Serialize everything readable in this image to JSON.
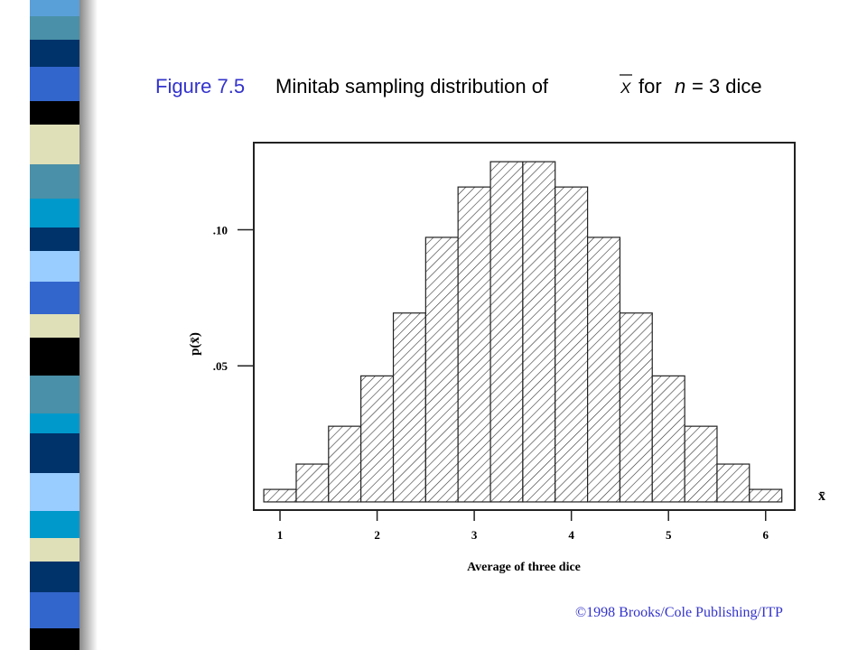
{
  "chart_data": {
    "type": "histogram",
    "title_prefix": "Figure 7.5",
    "title": "Minitab sampling distribution of",
    "title_symbol": "X",
    "title_suffix": [
      "for",
      "n",
      "= 3 dice"
    ],
    "xlabel": "Average of three dice",
    "ylabel": "p(x̄)",
    "x_axis_symbol": "x̄",
    "footer": "©1998 Brooks/Cole Publishing/ITP",
    "bins": [
      0.833,
      1.167,
      1.5,
      1.833,
      2.167,
      2.5,
      2.833,
      3.167,
      3.5,
      3.833,
      4.167,
      4.5,
      4.833,
      5.167,
      5.5,
      5.833,
      6.167
    ],
    "values": [
      0.0046,
      0.0139,
      0.0278,
      0.0463,
      0.0694,
      0.0972,
      0.1157,
      0.125,
      0.125,
      0.1157,
      0.0972,
      0.0694,
      0.0463,
      0.0278,
      0.0139,
      0.0046
    ],
    "xlim": [
      0.73,
      6.3
    ],
    "ylim": [
      -0.003,
      0.132
    ],
    "xticks": [
      1,
      2,
      3,
      4,
      5,
      6
    ],
    "yticks": [
      {
        "value": 0.05,
        "label": ".05"
      },
      {
        "value": 0.1,
        "label": ".10"
      }
    ],
    "fill": "hatch"
  }
}
